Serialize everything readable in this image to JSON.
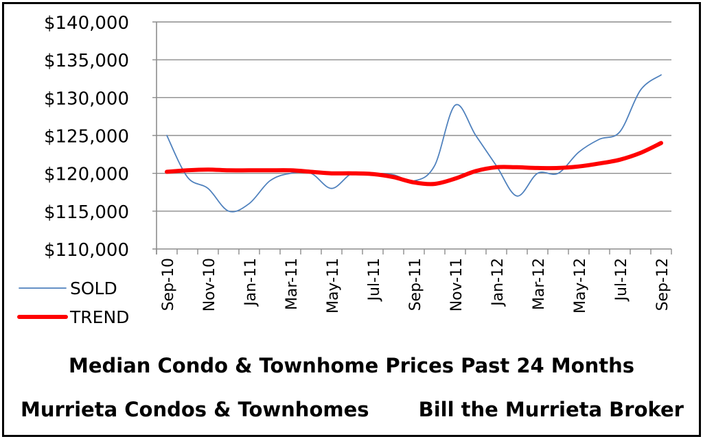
{
  "title": "Median Condo & Townhome Prices Past 24 Months",
  "subtitle_left": "Murrieta  Condos & Townhomes",
  "subtitle_right": "Bill the Murrieta Broker",
  "chart_data": {
    "type": "line",
    "x": [
      "Sep-10",
      "Oct-10",
      "Nov-10",
      "Dec-10",
      "Jan-11",
      "Feb-11",
      "Mar-11",
      "Apr-11",
      "May-11",
      "Jun-11",
      "Jul-11",
      "Aug-11",
      "Sep-11",
      "Oct-11",
      "Nov-11",
      "Dec-11",
      "Jan-12",
      "Feb-12",
      "Mar-12",
      "Apr-12",
      "May-12",
      "Jun-12",
      "Jul-12",
      "Aug-12",
      "Sep-12"
    ],
    "x_tick_labels": [
      "Sep-10",
      "Nov-10",
      "Jan-11",
      "Mar-11",
      "May-11",
      "Jul-11",
      "Sep-11",
      "Nov-11",
      "Jan-12",
      "Mar-12",
      "May-12",
      "Jul-12",
      "Sep-12"
    ],
    "series": [
      {
        "name": "SOLD",
        "color": "#4f81bd",
        "values": [
          125000,
          119500,
          118000,
          115000,
          116000,
          119000,
          120000,
          120000,
          118000,
          120000,
          120000,
          119800,
          119000,
          121000,
          129000,
          125000,
          121000,
          117000,
          120000,
          120000,
          122800,
          124500,
          125500,
          131000,
          133000
        ]
      },
      {
        "name": "TREND",
        "color": "#ff0000",
        "values": [
          120200,
          120400,
          120500,
          120400,
          120400,
          120400,
          120400,
          120200,
          120000,
          120000,
          119900,
          119500,
          118800,
          118600,
          119300,
          120300,
          120800,
          120800,
          120700,
          120700,
          120900,
          121300,
          121800,
          122700,
          124000
        ]
      }
    ],
    "y_tick_labels": [
      "$110,000",
      "$115,000",
      "$120,000",
      "$125,000",
      "$130,000",
      "$135,000",
      "$140,000"
    ],
    "ylim": [
      110000,
      140000
    ],
    "grid": "horizontal",
    "legend_position": "bottom-left"
  }
}
